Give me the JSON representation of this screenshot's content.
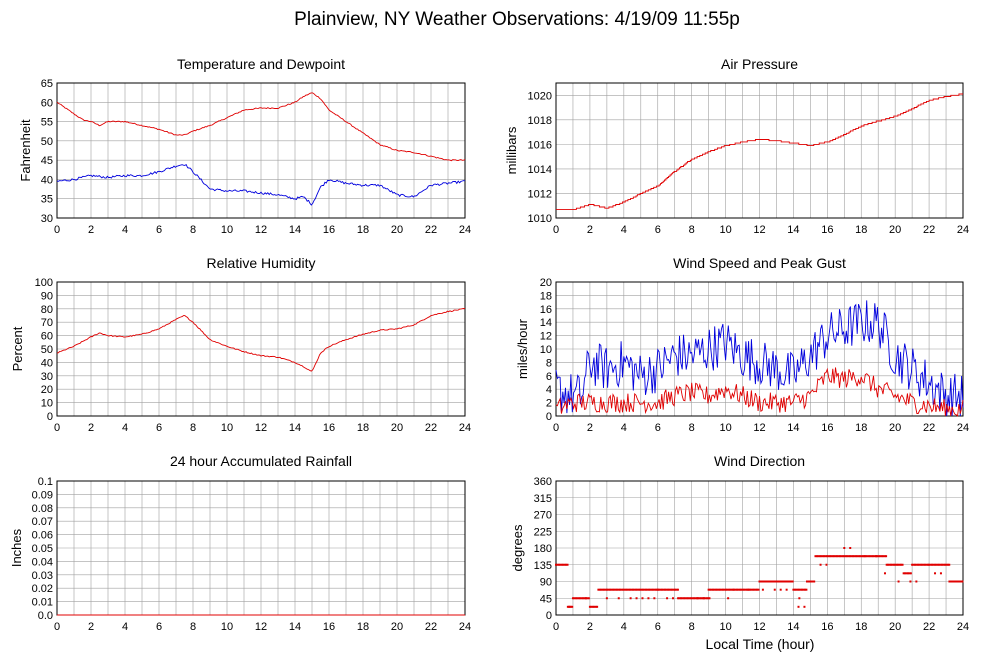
{
  "title": "Plainview, NY Weather Observations: 4/19/09 11:55p",
  "xlabel": "Local Time (hour)",
  "colors": {
    "temp": "#e00000",
    "dew": "#0000dd",
    "grid": "#a0a0a0"
  },
  "chart_data": [
    {
      "id": "temp",
      "type": "line",
      "title": "Temperature and Dewpoint",
      "ylabel": "Fahrenheit",
      "xlim": [
        0,
        24
      ],
      "ylim": [
        30,
        65
      ],
      "xticks": [
        0,
        2,
        4,
        6,
        8,
        10,
        12,
        14,
        16,
        18,
        20,
        22,
        24
      ],
      "yticks": [
        30,
        35,
        40,
        45,
        50,
        55,
        60,
        65
      ],
      "series": [
        {
          "color": "#e00000",
          "noise": 0.3,
          "points": [
            [
              0,
              60
            ],
            [
              0.5,
              58.5
            ],
            [
              1,
              57
            ],
            [
              1.5,
              55.5
            ],
            [
              2,
              55
            ],
            [
              2.5,
              54
            ],
            [
              3,
              55
            ],
            [
              4,
              55
            ],
            [
              5,
              54
            ],
            [
              6,
              53
            ],
            [
              7,
              51.5
            ],
            [
              7.5,
              51.5
            ],
            [
              8,
              52.5
            ],
            [
              9,
              54
            ],
            [
              10,
              56
            ],
            [
              11,
              58
            ],
            [
              12,
              58.5
            ],
            [
              13,
              58.5
            ],
            [
              14,
              60
            ],
            [
              14.5,
              61.5
            ],
            [
              15,
              62.5
            ],
            [
              15.5,
              61
            ],
            [
              16,
              58
            ],
            [
              17,
              55
            ],
            [
              18,
              52
            ],
            [
              19,
              49
            ],
            [
              20,
              47.5
            ],
            [
              21,
              47
            ],
            [
              22,
              46
            ],
            [
              23,
              45
            ],
            [
              24,
              45
            ]
          ]
        },
        {
          "color": "#0000dd",
          "noise": 0.6,
          "points": [
            [
              0,
              39.5
            ],
            [
              1,
              40
            ],
            [
              2,
              41
            ],
            [
              3,
              40.5
            ],
            [
              4,
              41
            ],
            [
              5,
              41
            ],
            [
              6,
              42
            ],
            [
              7,
              43.5
            ],
            [
              7.5,
              44
            ],
            [
              8,
              42
            ],
            [
              9,
              37.5
            ],
            [
              10,
              37
            ],
            [
              11,
              37
            ],
            [
              12,
              36.5
            ],
            [
              13,
              36
            ],
            [
              14,
              35
            ],
            [
              14.5,
              35.5
            ],
            [
              15,
              33.5
            ],
            [
              15.5,
              38
            ],
            [
              16,
              40
            ],
            [
              17,
              39
            ],
            [
              18,
              38.5
            ],
            [
              19,
              38.5
            ],
            [
              20,
              36
            ],
            [
              21,
              35.5
            ],
            [
              22,
              38.5
            ],
            [
              23,
              39
            ],
            [
              24,
              39.5
            ]
          ]
        }
      ]
    },
    {
      "id": "pressure",
      "type": "line",
      "title": "Air Pressure",
      "ylabel": "millibars",
      "xlim": [
        0,
        24
      ],
      "ylim": [
        1010,
        1021
      ],
      "xticks": [
        0,
        2,
        4,
        6,
        8,
        10,
        12,
        14,
        16,
        18,
        20,
        22,
        24
      ],
      "yticks": [
        1010,
        1012,
        1014,
        1016,
        1018,
        1020
      ],
      "series": [
        {
          "color": "#e00000",
          "step": 0.1,
          "points": [
            [
              0,
              1010.7
            ],
            [
              1,
              1010.7
            ],
            [
              2,
              1011.1
            ],
            [
              3,
              1010.8
            ],
            [
              4,
              1011.3
            ],
            [
              5,
              1012
            ],
            [
              6,
              1012.6
            ],
            [
              7,
              1013.8
            ],
            [
              8,
              1014.8
            ],
            [
              9,
              1015.4
            ],
            [
              10,
              1015.9
            ],
            [
              11,
              1016.2
            ],
            [
              12,
              1016.4
            ],
            [
              13,
              1016.3
            ],
            [
              14,
              1016.1
            ],
            [
              15,
              1015.9
            ],
            [
              16,
              1016.2
            ],
            [
              17,
              1016.8
            ],
            [
              18,
              1017.5
            ],
            [
              19,
              1017.9
            ],
            [
              20,
              1018.3
            ],
            [
              21,
              1018.9
            ],
            [
              22,
              1019.6
            ],
            [
              23,
              1019.9
            ],
            [
              24,
              1020.1
            ]
          ]
        }
      ]
    },
    {
      "id": "humidity",
      "type": "line",
      "title": "Relative Humidity",
      "ylabel": "Percent",
      "xlim": [
        0,
        24
      ],
      "ylim": [
        0,
        100
      ],
      "xticks": [
        0,
        2,
        4,
        6,
        8,
        10,
        12,
        14,
        16,
        18,
        20,
        22,
        24
      ],
      "yticks": [
        0,
        10,
        20,
        30,
        40,
        50,
        60,
        70,
        80,
        90,
        100
      ],
      "series": [
        {
          "color": "#e00000",
          "noise": 0.8,
          "points": [
            [
              0,
              47
            ],
            [
              1,
              52
            ],
            [
              2,
              59
            ],
            [
              2.5,
              62
            ],
            [
              3,
              60
            ],
            [
              4,
              59
            ],
            [
              5,
              61
            ],
            [
              6,
              65
            ],
            [
              7,
              72
            ],
            [
              7.5,
              75
            ],
            [
              8,
              70
            ],
            [
              9,
              57
            ],
            [
              10,
              52
            ],
            [
              11,
              48
            ],
            [
              12,
              45
            ],
            [
              13,
              44
            ],
            [
              14,
              40
            ],
            [
              14.5,
              37
            ],
            [
              15,
              33
            ],
            [
              15.5,
              47
            ],
            [
              16,
              52
            ],
            [
              17,
              57
            ],
            [
              18,
              61
            ],
            [
              19,
              64
            ],
            [
              20,
              65
            ],
            [
              21,
              68
            ],
            [
              22,
              75
            ],
            [
              23,
              78
            ],
            [
              24,
              80
            ]
          ]
        }
      ]
    },
    {
      "id": "wind",
      "type": "line",
      "title": "Wind Speed and Peak Gust",
      "ylabel": "miles/hour",
      "xlim": [
        0,
        24
      ],
      "ylim": [
        0,
        20
      ],
      "xticks": [
        0,
        2,
        4,
        6,
        8,
        10,
        12,
        14,
        16,
        18,
        20,
        22,
        24
      ],
      "yticks": [
        0,
        2,
        4,
        6,
        8,
        10,
        12,
        14,
        16,
        18,
        20
      ],
      "series": [
        {
          "color": "#0000dd",
          "jitter": 3.5,
          "points": [
            [
              0,
              4
            ],
            [
              1,
              3
            ],
            [
              1.5,
              3
            ],
            [
              2,
              8
            ],
            [
              3,
              7
            ],
            [
              4,
              8
            ],
            [
              5,
              6
            ],
            [
              6,
              7
            ],
            [
              7,
              9
            ],
            [
              8,
              9
            ],
            [
              9,
              10
            ],
            [
              10,
              11
            ],
            [
              11,
              9
            ],
            [
              12,
              8
            ],
            [
              13,
              7
            ],
            [
              14,
              6
            ],
            [
              15,
              9
            ],
            [
              16,
              12
            ],
            [
              17,
              13
            ],
            [
              18,
              14
            ],
            [
              19,
              14
            ],
            [
              20,
              9
            ],
            [
              21,
              7
            ],
            [
              22,
              5
            ],
            [
              23,
              3
            ],
            [
              24,
              3
            ]
          ]
        },
        {
          "color": "#e00000",
          "jitter": 1.5,
          "points": [
            [
              0,
              1
            ],
            [
              1,
              2
            ],
            [
              2,
              2
            ],
            [
              3,
              2
            ],
            [
              4,
              2
            ],
            [
              5,
              2
            ],
            [
              6,
              2
            ],
            [
              7,
              3
            ],
            [
              8,
              3.5
            ],
            [
              9,
              3
            ],
            [
              10,
              4
            ],
            [
              11,
              3
            ],
            [
              12,
              2
            ],
            [
              13,
              2
            ],
            [
              14,
              2
            ],
            [
              15,
              3
            ],
            [
              16,
              6
            ],
            [
              17,
              5.5
            ],
            [
              18,
              6
            ],
            [
              19,
              4
            ],
            [
              20,
              3
            ],
            [
              21,
              2
            ],
            [
              22,
              1.5
            ],
            [
              23,
              1
            ],
            [
              24,
              1
            ]
          ]
        }
      ]
    },
    {
      "id": "rain",
      "type": "line",
      "title": "24 hour Accumulated Rainfall",
      "ylabel": "Inches",
      "xlim": [
        0,
        24
      ],
      "ylim": [
        0,
        0.1
      ],
      "xticks": [
        0,
        2,
        4,
        6,
        8,
        10,
        12,
        14,
        16,
        18,
        20,
        22,
        24
      ],
      "yticks": [
        0,
        0.01,
        0.02,
        0.03,
        0.04,
        0.05,
        0.06,
        0.07,
        0.08,
        0.09,
        0.1
      ],
      "ytick_labels": [
        "0.0",
        "0.01",
        "0.02",
        "0.03",
        "0.04",
        "0.05",
        "0.06",
        "0.07",
        "0.08",
        "0.09",
        "0.1"
      ],
      "series": [
        {
          "color": "#e00000",
          "points": [
            [
              0,
              0
            ],
            [
              24,
              0
            ]
          ]
        }
      ]
    },
    {
      "id": "direction",
      "type": "scatter",
      "title": "Wind Direction",
      "ylabel": "degrees",
      "xlim": [
        0,
        24
      ],
      "ylim": [
        0,
        360
      ],
      "xticks": [
        0,
        2,
        4,
        6,
        8,
        10,
        12,
        14,
        16,
        18,
        20,
        22,
        24
      ],
      "yticks": [
        0,
        45,
        90,
        135,
        180,
        225,
        270,
        315,
        360
      ],
      "series": [
        {
          "color": "#e00000",
          "segments": [
            [
              0,
              0.7,
              135
            ],
            [
              0.7,
              1.0,
              22
            ],
            [
              1.0,
              2.0,
              45
            ],
            [
              2.0,
              2.5,
              22
            ],
            [
              2.5,
              6.0,
              68
            ],
            [
              6.0,
              7.2,
              68
            ],
            [
              7.2,
              9.0,
              45
            ],
            [
              9.0,
              10.5,
              68
            ],
            [
              10.5,
              12.0,
              68
            ],
            [
              12.0,
              14.0,
              90
            ],
            [
              14.0,
              14.8,
              68
            ],
            [
              14.8,
              15.3,
              90
            ],
            [
              15.3,
              19.5,
              158
            ],
            [
              19.5,
              20.5,
              135
            ],
            [
              20.5,
              21.0,
              112
            ],
            [
              21.0,
              22.0,
              135
            ],
            [
              22.0,
              23.2,
              135
            ],
            [
              23.2,
              24,
              90
            ]
          ],
          "secondary": [
            [
              0.8,
              1.0,
              22
            ],
            [
              1.4,
              1.8,
              45
            ],
            [
              3.0,
              6.0,
              45
            ],
            [
              6.2,
              7.0,
              45
            ],
            [
              8.0,
              9.2,
              45
            ],
            [
              9.8,
              10.8,
              45
            ],
            [
              11.0,
              11.8,
              68
            ],
            [
              12.2,
              13.8,
              68
            ],
            [
              14.0,
              14.6,
              45
            ],
            [
              14.3,
              14.9,
              22
            ],
            [
              15.6,
              16.2,
              135
            ],
            [
              16.0,
              16.5,
              180
            ],
            [
              17.0,
              17.5,
              180
            ],
            [
              18.2,
              19.0,
              158
            ],
            [
              19.4,
              20.0,
              112
            ],
            [
              20.2,
              21.4,
              90
            ],
            [
              22.0,
              23.0,
              112
            ],
            [
              23.0,
              23.6,
              90
            ]
          ]
        }
      ]
    }
  ]
}
